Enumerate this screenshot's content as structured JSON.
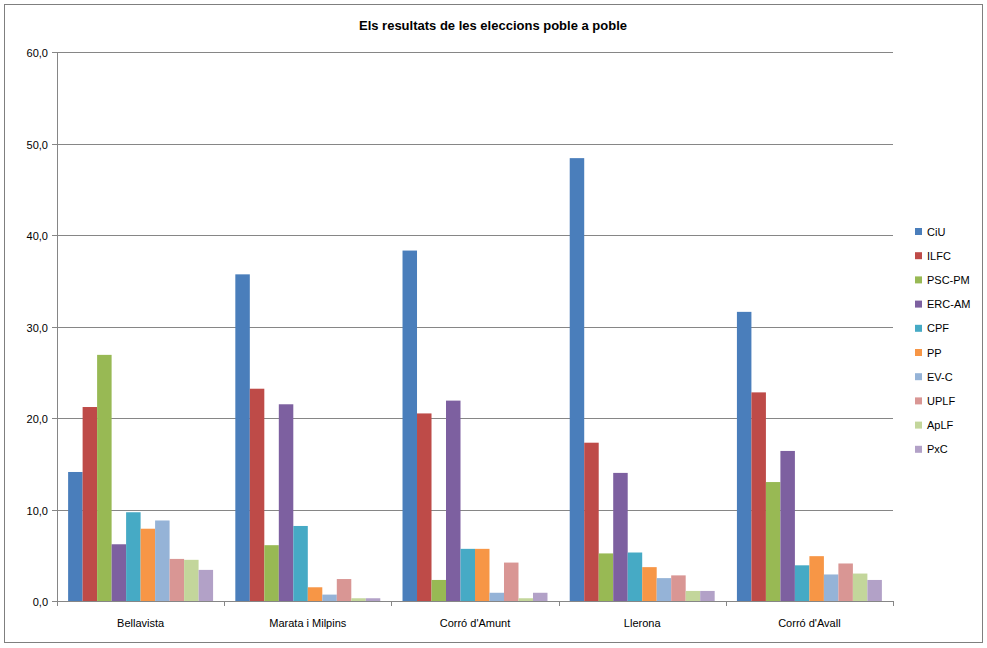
{
  "chart_data": {
    "type": "bar",
    "title": "Els resultats de les eleccions poble a poble",
    "categories": [
      "Bellavista",
      "Marata i Milpins",
      "Corró d'Amunt",
      "Llerona",
      "Corró d'Avall"
    ],
    "series": [
      {
        "name": "CiU",
        "color": "#4a7ebb",
        "values": [
          14.1,
          35.7,
          38.3,
          48.4,
          31.6
        ]
      },
      {
        "name": "ILFC",
        "color": "#be4b48",
        "values": [
          21.2,
          23.2,
          20.5,
          17.3,
          22.8
        ]
      },
      {
        "name": "PSC-PM",
        "color": "#98b954",
        "values": [
          26.9,
          6.1,
          2.3,
          5.2,
          13.0
        ]
      },
      {
        "name": "ERC-AM",
        "color": "#7d60a0",
        "values": [
          6.2,
          21.5,
          21.9,
          14.0,
          16.4
        ]
      },
      {
        "name": "CPF",
        "color": "#46aac5",
        "values": [
          9.7,
          8.2,
          5.7,
          5.3,
          3.9
        ]
      },
      {
        "name": "PP",
        "color": "#f79646",
        "values": [
          7.9,
          1.5,
          5.7,
          3.7,
          4.9
        ]
      },
      {
        "name": "EV-C",
        "color": "#95b3d7",
        "values": [
          8.8,
          0.7,
          0.9,
          2.5,
          2.9
        ]
      },
      {
        "name": "UPLF",
        "color": "#d99694",
        "values": [
          4.6,
          2.4,
          4.2,
          2.8,
          4.1
        ]
      },
      {
        "name": "ApLF",
        "color": "#c3d69b",
        "values": [
          4.5,
          0.3,
          0.3,
          1.1,
          3.0
        ]
      },
      {
        "name": "PxC",
        "color": "#b2a1c7",
        "values": [
          3.4,
          0.3,
          0.9,
          1.1,
          2.3
        ]
      }
    ],
    "ylim": [
      0,
      60
    ],
    "yticks": [
      {
        "value": 0,
        "label": "0,0"
      },
      {
        "value": 10,
        "label": "10,0"
      },
      {
        "value": 20,
        "label": "20,0"
      },
      {
        "value": 30,
        "label": "30,0"
      },
      {
        "value": 40,
        "label": "40,0"
      },
      {
        "value": 50,
        "label": "50,0"
      },
      {
        "value": 60,
        "label": "60,0"
      }
    ],
    "grid": true,
    "legend": "right"
  }
}
